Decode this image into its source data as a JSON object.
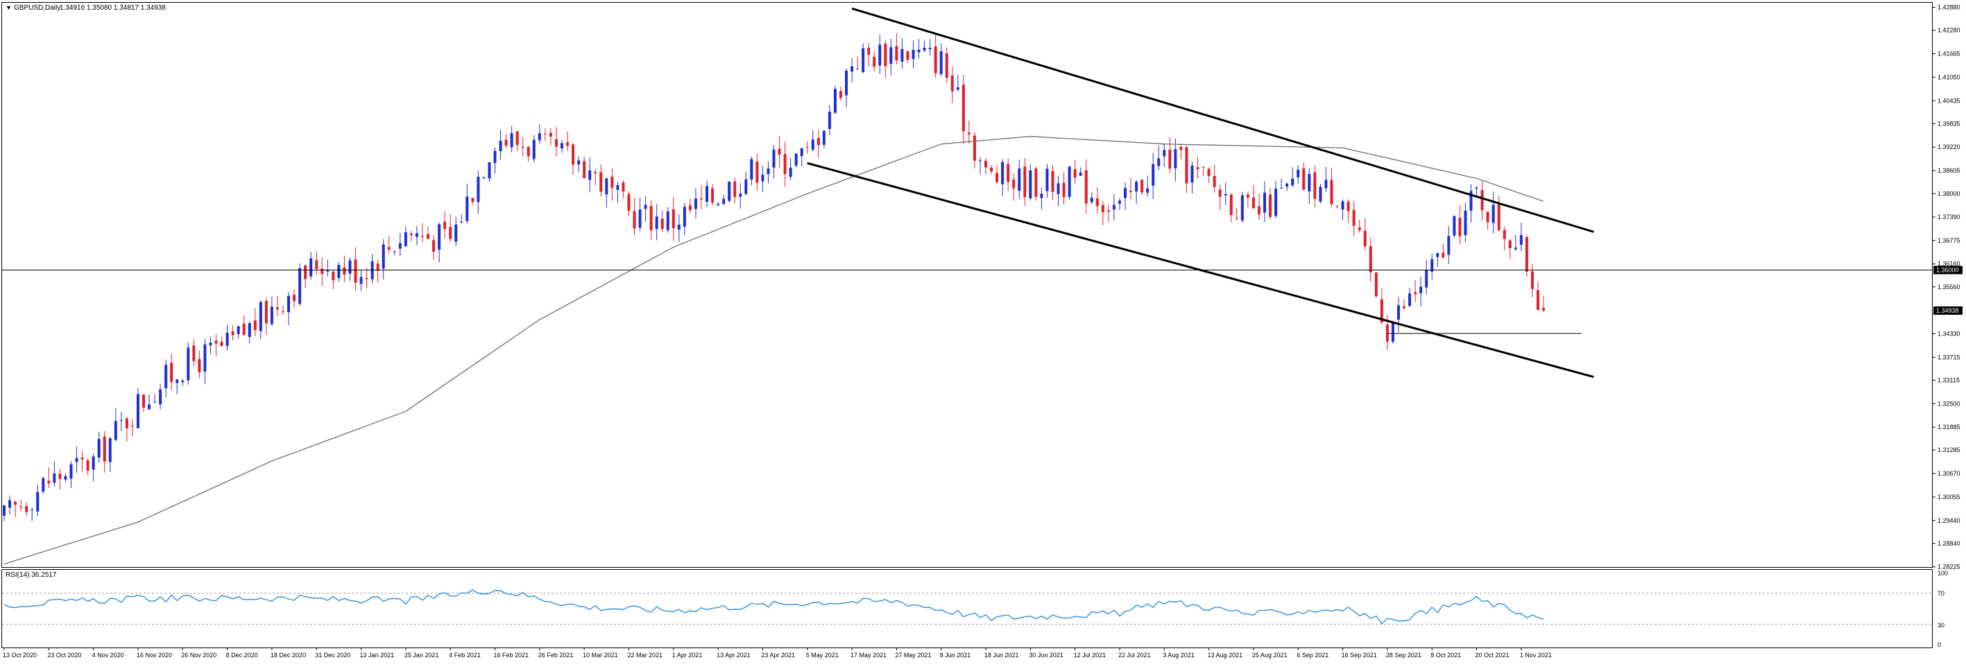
{
  "header": {
    "dropdown_glyph": "▼",
    "symbol_label": "GBPUSD,Daily",
    "ohlc_label": "1.34916 1.35080 1.34817 1.34938"
  },
  "rsi_panel": {
    "label": "RSI(14) 36.2517",
    "levels": [
      "100",
      "70",
      "30",
      "0"
    ]
  },
  "colors": {
    "background": "#ffffff",
    "bull_candle": "#1f2fd0",
    "bear_candle": "#e0202a",
    "moving_average": "#6e6e6e",
    "rsi_line": "#2f8fdc",
    "trendline": "#000000",
    "price_tag_bg": "#000000",
    "price_tag_text": "#ffffff"
  },
  "chart_data": {
    "type": "candlestick",
    "title": "",
    "symbol": "GBPUSD",
    "timeframe": "Daily",
    "y_ticks": [
      "1.42880",
      "1.42280",
      "1.41665",
      "1.41050",
      "1.40435",
      "1.39835",
      "1.39220",
      "1.38605",
      "1.38000",
      "1.37390",
      "1.36775",
      "1.36160",
      "1.35560",
      "1.34330",
      "1.33715",
      "1.33115",
      "1.32500",
      "1.31885",
      "1.31285",
      "1.30670",
      "1.30055",
      "1.29440",
      "1.28840",
      "1.28225"
    ],
    "ylim": [
      1.2822,
      1.43
    ],
    "x_ticks": [
      "13 Oct 2020",
      "23 Oct 2020",
      "4 Nov 2020",
      "16 Nov 2020",
      "26 Nov 2020",
      "8 Dec 2020",
      "18 Dec 2020",
      "31 Dec 2020",
      "13 Jan 2021",
      "25 Jan 2021",
      "4 Feb 2021",
      "16 Feb 2021",
      "26 Feb 2021",
      "10 Mar 2021",
      "22 Mar 2021",
      "1 Apr 2021",
      "13 Apr 2021",
      "23 Apr 2021",
      "5 May 2021",
      "17 May 2021",
      "27 May 2021",
      "8 Jun 2021",
      "18 Jun 2021",
      "30 Jun 2021",
      "12 Jul 2021",
      "22 Jul 2021",
      "3 Aug 2021",
      "13 Aug 2021",
      "25 Aug 2021",
      "6 Sep 2021",
      "16 Sep 2021",
      "28 Sep 2021",
      "8 Oct 2021",
      "20 Oct 2021",
      "1 Nov 2021"
    ],
    "price_tags": [
      {
        "label": "1.36000",
        "value": 1.36
      },
      {
        "label": "1.34938",
        "value": 1.34938
      }
    ],
    "horizontal_levels": [
      1.36,
      1.3434
    ],
    "trendlines": [
      {
        "from": [
          "17 May 2021",
          1.4285
        ],
        "to": [
          "after 1 Nov 2021",
          1.37
        ]
      },
      {
        "from": [
          "5 May 2021",
          1.388
        ],
        "to": [
          "after 1 Nov 2021",
          1.332
        ]
      }
    ],
    "close_anchors": [
      {
        "date": "13 Oct 2020",
        "close": 1.295
      },
      {
        "date": "23 Oct 2020",
        "close": 1.305
      },
      {
        "date": "4 Nov 2020",
        "close": 1.31
      },
      {
        "date": "16 Nov 2020",
        "close": 1.325
      },
      {
        "date": "26 Nov 2020",
        "close": 1.335
      },
      {
        "date": "8 Dec 2020",
        "close": 1.34
      },
      {
        "date": "18 Dec 2020",
        "close": 1.35
      },
      {
        "date": "31 Dec 2020",
        "close": 1.362
      },
      {
        "date": "13 Jan 2021",
        "close": 1.36
      },
      {
        "date": "25 Jan 2021",
        "close": 1.37
      },
      {
        "date": "4 Feb 2021",
        "close": 1.368
      },
      {
        "date": "16 Feb 2021",
        "close": 1.395
      },
      {
        "date": "26 Feb 2021",
        "close": 1.392
      },
      {
        "date": "10 Mar 2021",
        "close": 1.388
      },
      {
        "date": "22 Mar 2021",
        "close": 1.375
      },
      {
        "date": "1 Apr 2021",
        "close": 1.373
      },
      {
        "date": "13 Apr 2021",
        "close": 1.38
      },
      {
        "date": "23 Apr 2021",
        "close": 1.388
      },
      {
        "date": "5 May 2021",
        "close": 1.39
      },
      {
        "date": "17 May 2021",
        "close": 1.415
      },
      {
        "date": "27 May 2021",
        "close": 1.418
      },
      {
        "date": "8 Jun 2021",
        "close": 1.415
      },
      {
        "date": "18 Jun 2021",
        "close": 1.385
      },
      {
        "date": "30 Jun 2021",
        "close": 1.383
      },
      {
        "date": "12 Jul 2021",
        "close": 1.383
      },
      {
        "date": "22 Jul 2021",
        "close": 1.376
      },
      {
        "date": "3 Aug 2021",
        "close": 1.39
      },
      {
        "date": "13 Aug 2021",
        "close": 1.383
      },
      {
        "date": "25 Aug 2021",
        "close": 1.374
      },
      {
        "date": "6 Sep 2021",
        "close": 1.383
      },
      {
        "date": "16 Sep 2021",
        "close": 1.38
      },
      {
        "date": "28 Sep 2021",
        "close": 1.345
      },
      {
        "date": "8 Oct 2021",
        "close": 1.36
      },
      {
        "date": "20 Oct 2021",
        "close": 1.38
      },
      {
        "date": "1 Nov 2021",
        "close": 1.365
      },
      {
        "date": "last bar",
        "close": 1.34938
      }
    ],
    "moving_average_anchors": [
      {
        "date": "13 Oct 2020",
        "value": 1.283
      },
      {
        "date": "16 Nov 2020",
        "value": 1.294
      },
      {
        "date": "18 Dec 2020",
        "value": 1.31
      },
      {
        "date": "25 Jan 2021",
        "value": 1.323
      },
      {
        "date": "26 Feb 2021",
        "value": 1.347
      },
      {
        "date": "1 Apr 2021",
        "value": 1.366
      },
      {
        "date": "5 May 2021",
        "value": 1.38
      },
      {
        "date": "8 Jun 2021",
        "value": 1.393
      },
      {
        "date": "30 Jun 2021",
        "value": 1.395
      },
      {
        "date": "3 Aug 2021",
        "value": 1.393
      },
      {
        "date": "16 Sep 2021",
        "value": 1.392
      },
      {
        "date": "20 Oct 2021",
        "value": 1.384
      },
      {
        "date": "last bar",
        "value": 1.378
      }
    ],
    "rsi_anchors": [
      {
        "date": "13 Oct 2020",
        "value": 55
      },
      {
        "date": "16 Nov 2020",
        "value": 63
      },
      {
        "date": "18 Dec 2020",
        "value": 64
      },
      {
        "date": "25 Jan 2021",
        "value": 60
      },
      {
        "date": "16 Feb 2021",
        "value": 75
      },
      {
        "date": "10 Mar 2021",
        "value": 52
      },
      {
        "date": "1 Apr 2021",
        "value": 48
      },
      {
        "date": "5 May 2021",
        "value": 58
      },
      {
        "date": "27 May 2021",
        "value": 60
      },
      {
        "date": "18 Jun 2021",
        "value": 38
      },
      {
        "date": "22 Jul 2021",
        "value": 44
      },
      {
        "date": "3 Aug 2021",
        "value": 60
      },
      {
        "date": "25 Aug 2021",
        "value": 43
      },
      {
        "date": "16 Sep 2021",
        "value": 50
      },
      {
        "date": "28 Sep 2021",
        "value": 33
      },
      {
        "date": "20 Oct 2021",
        "value": 62
      },
      {
        "date": "last bar",
        "value": 36.25
      }
    ]
  }
}
